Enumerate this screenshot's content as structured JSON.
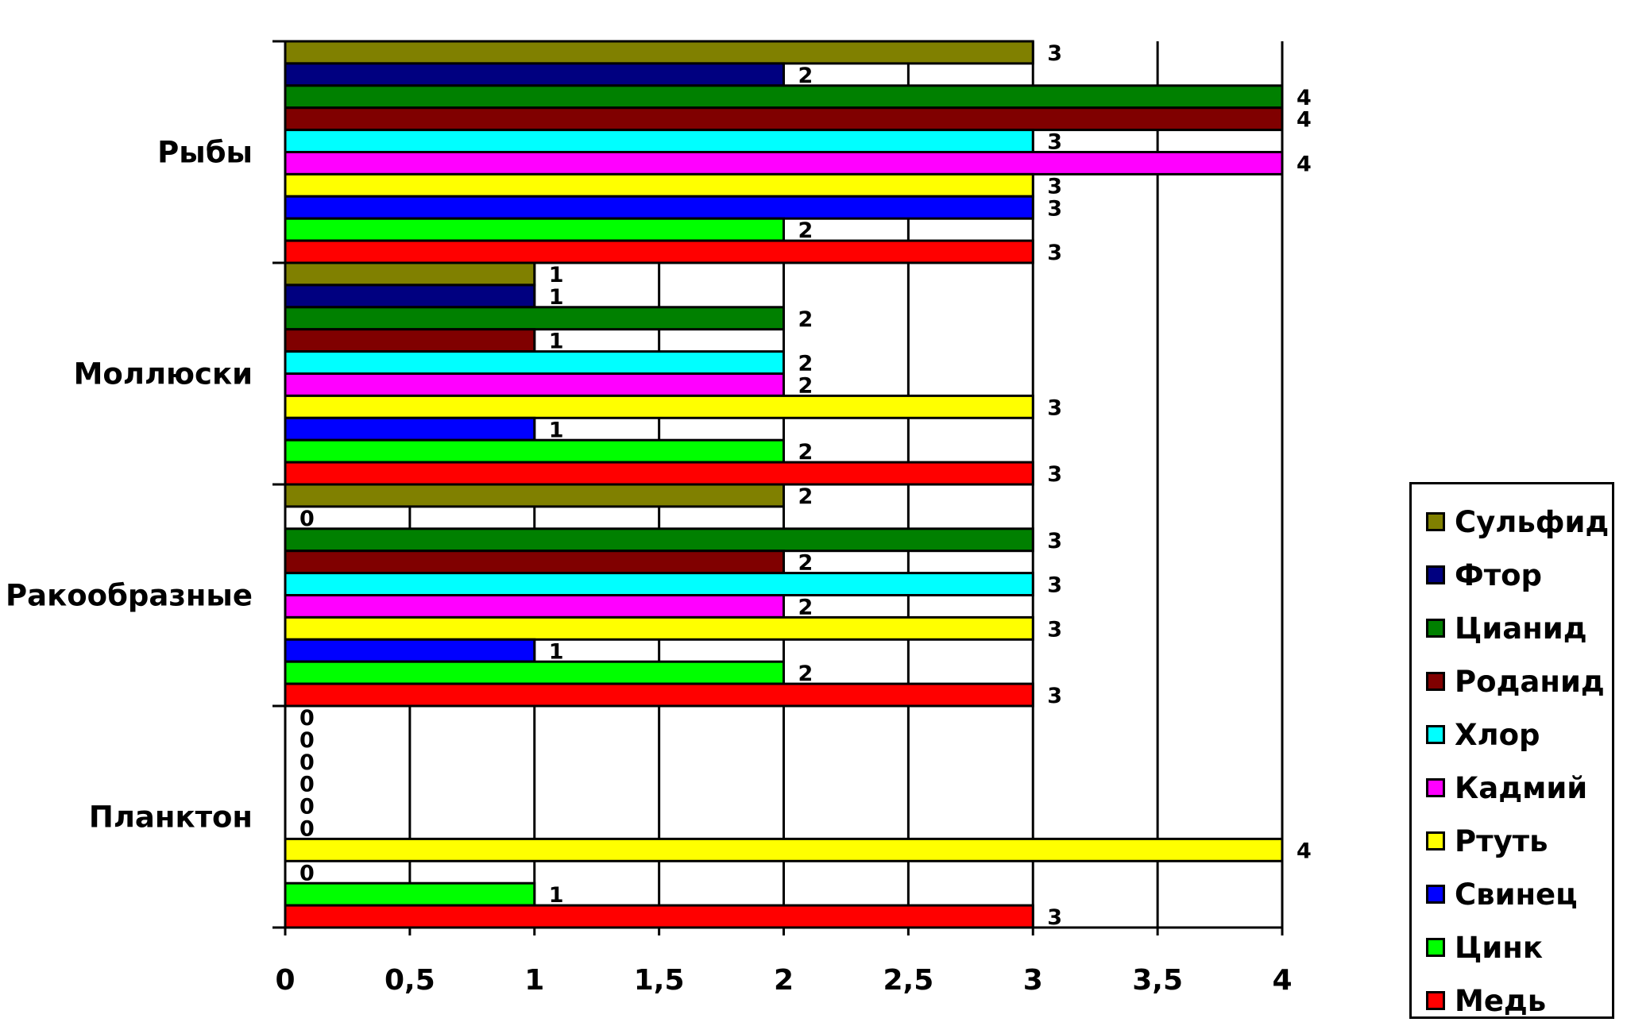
{
  "chart_data": {
    "type": "bar",
    "orientation": "horizontal",
    "categories": [
      "Рыбы",
      "Моллюски",
      "Ракообразные",
      "Планктон"
    ],
    "series": [
      {
        "name": "Сульфид",
        "color": "#808000",
        "values": [
          3,
          1,
          2,
          0
        ]
      },
      {
        "name": "Фтор",
        "color": "#000080",
        "values": [
          2,
          1,
          0,
          0
        ]
      },
      {
        "name": "Цианид",
        "color": "#008000",
        "values": [
          4,
          2,
          3,
          0
        ]
      },
      {
        "name": "Роданид",
        "color": "#800000",
        "values": [
          4,
          1,
          2,
          0
        ]
      },
      {
        "name": "Хлор",
        "color": "#00FFFF",
        "values": [
          3,
          2,
          3,
          0
        ]
      },
      {
        "name": "Кадмий",
        "color": "#FF00FF",
        "values": [
          4,
          2,
          2,
          0
        ]
      },
      {
        "name": "Ртуть",
        "color": "#FFFF00",
        "values": [
          3,
          3,
          3,
          4
        ]
      },
      {
        "name": "Свинец",
        "color": "#0000FF",
        "values": [
          3,
          1,
          1,
          0
        ]
      },
      {
        "name": "Цинк",
        "color": "#00FF00",
        "values": [
          2,
          2,
          2,
          1
        ]
      },
      {
        "name": "Медь",
        "color": "#FF0000",
        "values": [
          3,
          3,
          3,
          3
        ]
      }
    ],
    "x_ticks": [
      "0",
      "0,5",
      "1",
      "1,5",
      "2",
      "2,5",
      "3",
      "3,5",
      "4"
    ],
    "xlim": [
      0,
      4
    ],
    "grid": true,
    "legend_position": "right",
    "data_labels": true
  }
}
